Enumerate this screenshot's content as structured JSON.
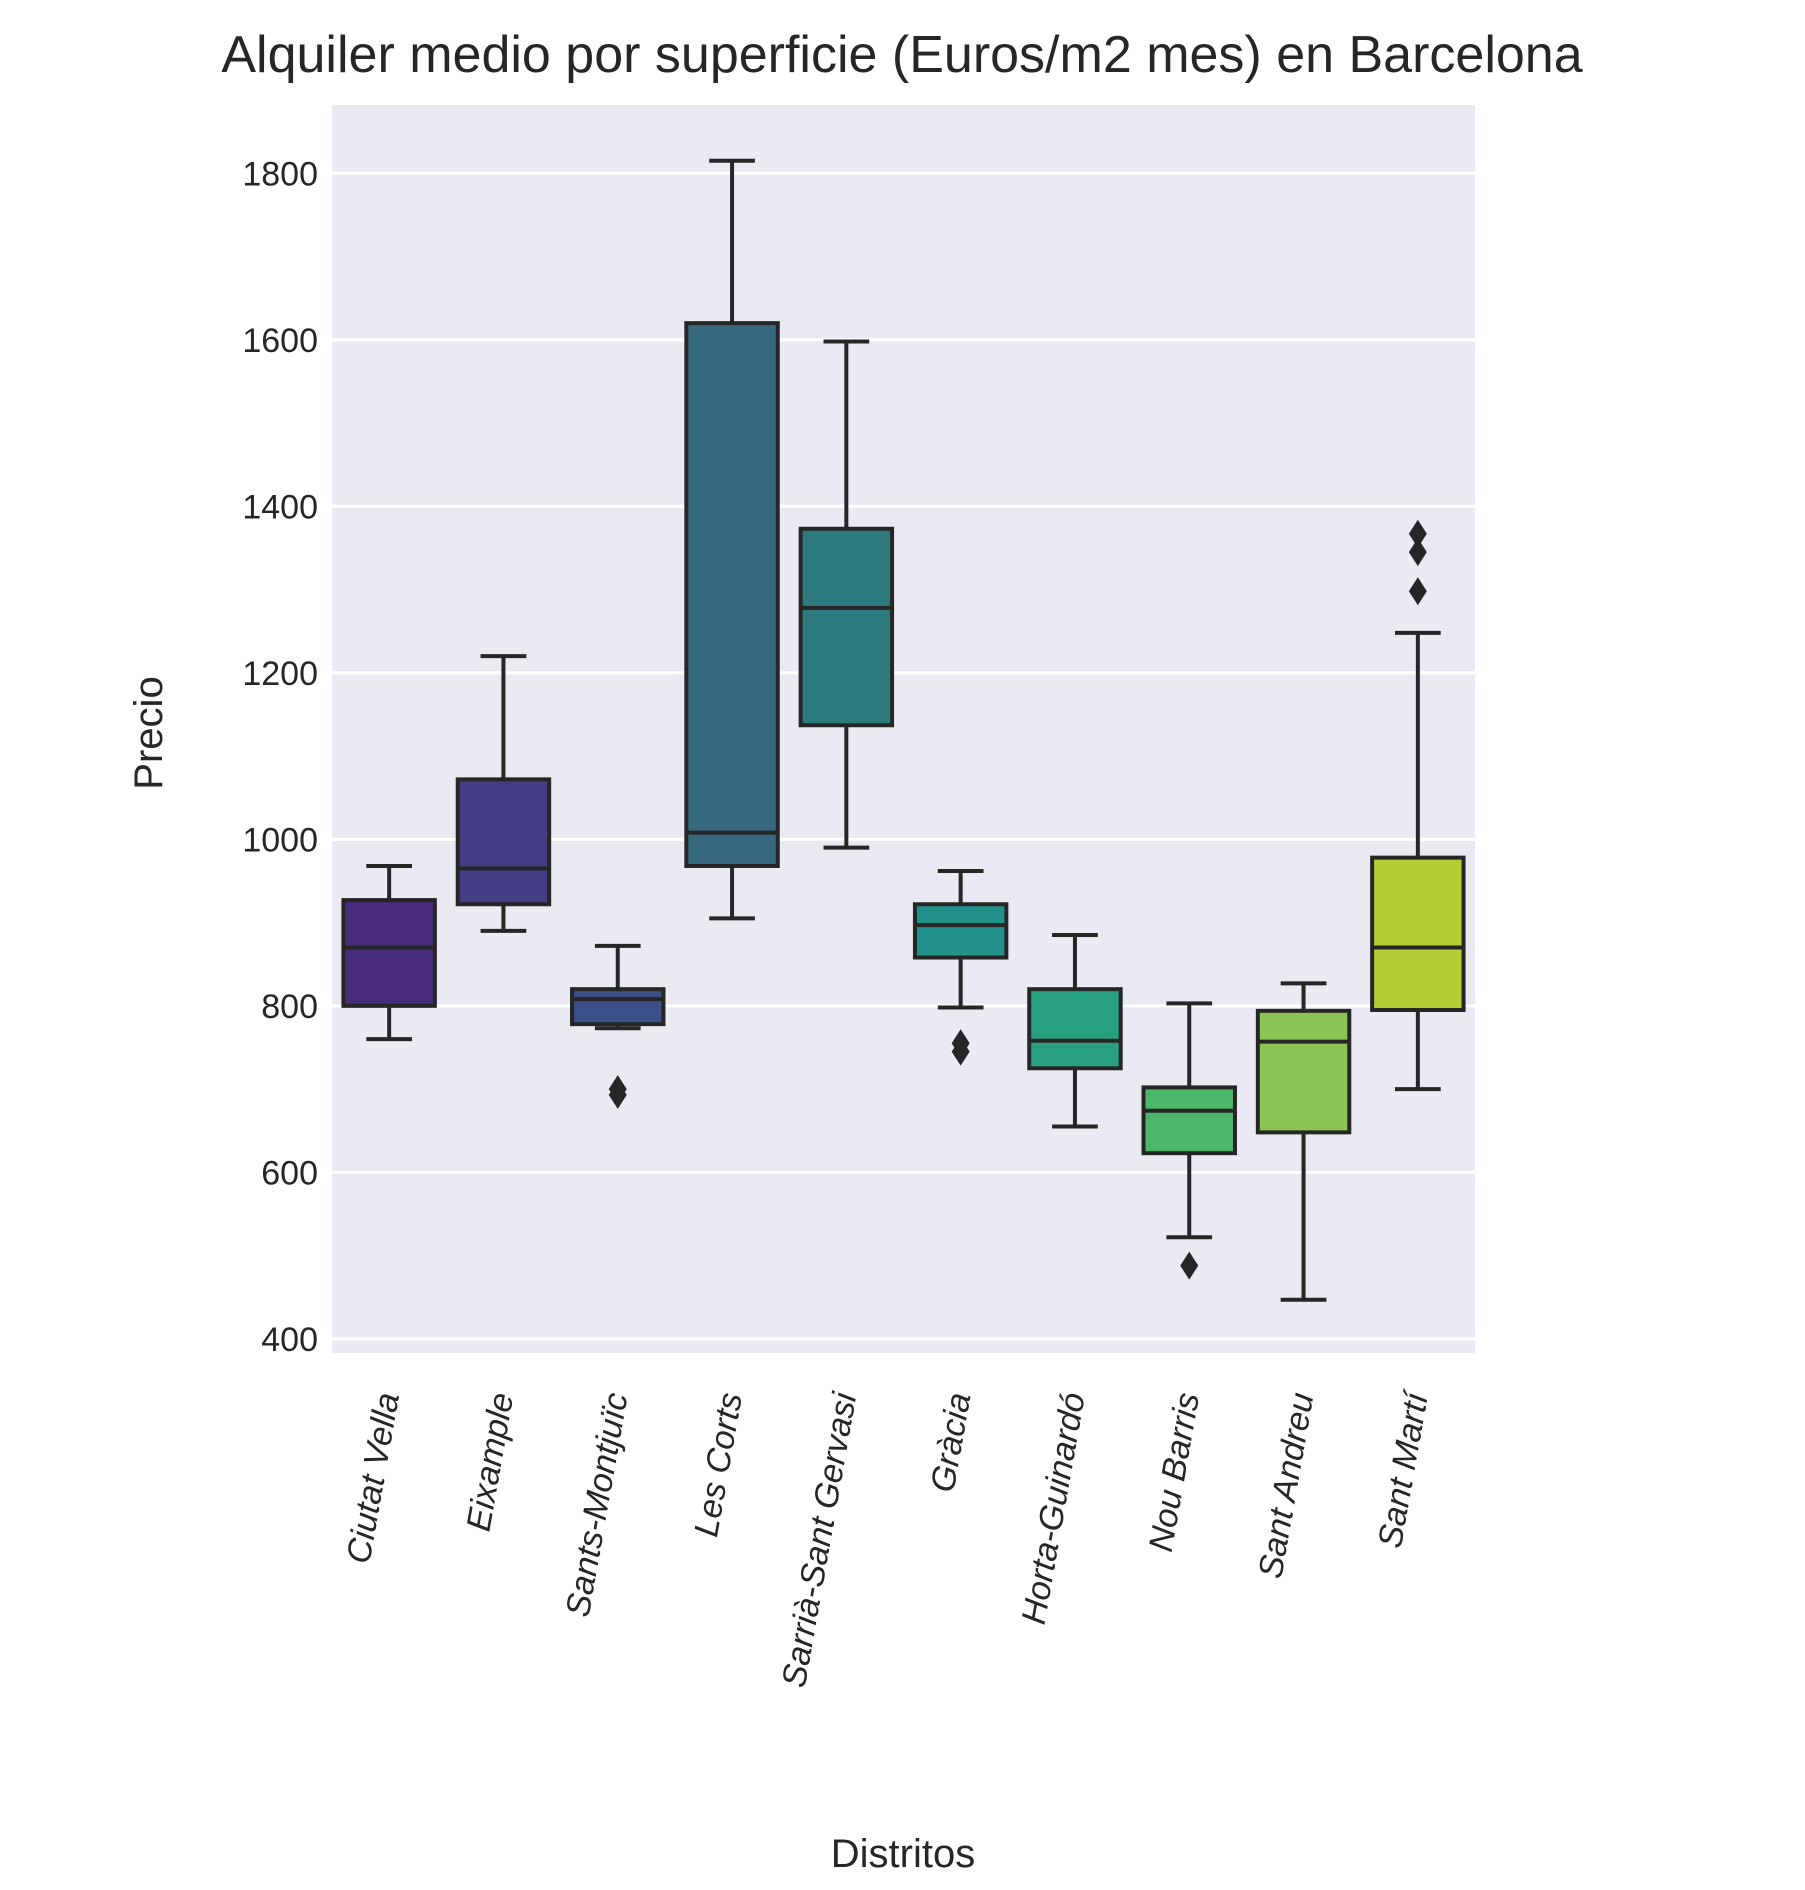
{
  "chart_data": {
    "type": "box",
    "title": "Alquiler medio por superficie (Euros/m2 mes) en Barcelona",
    "xlabel": "Distritos",
    "ylabel": "Precio",
    "ylim": [
      383,
      1882
    ],
    "yticks": [
      400,
      600,
      800,
      1000,
      1200,
      1400,
      1600,
      1800
    ],
    "grid": true,
    "background": "#eaeaf2",
    "series": [
      {
        "category": "Ciutat Vella",
        "color": "#472c7a",
        "whisker_low": 760,
        "q1": 800,
        "median": 870,
        "q3": 927,
        "whisker_high": 968,
        "outliers": []
      },
      {
        "category": "Eixample",
        "color": "#443e85",
        "whisker_low": 890,
        "q1": 922,
        "median": 965,
        "q3": 1072,
        "whisker_high": 1220,
        "outliers": []
      },
      {
        "category": "Sants-Montjuïc",
        "color": "#3b5089",
        "whisker_low": 773,
        "q1": 778,
        "median": 808,
        "q3": 820,
        "whisker_high": 872,
        "outliers": [
          693,
          700
        ]
      },
      {
        "category": "Les Corts",
        "color": "#36697f",
        "whisker_low": 905,
        "q1": 968,
        "median": 1008,
        "q3": 1620,
        "whisker_high": 1815,
        "outliers": []
      },
      {
        "category": "Sarrià-Sant Gervasi",
        "color": "#2d7a7e",
        "whisker_low": 990,
        "q1": 1137,
        "median": 1278,
        "q3": 1373,
        "whisker_high": 1598,
        "outliers": []
      },
      {
        "category": "Gràcia",
        "color": "#21918c",
        "whisker_low": 798,
        "q1": 858,
        "median": 897,
        "q3": 922,
        "whisker_high": 962,
        "outliers": [
          745,
          755
        ]
      },
      {
        "category": "Horta-Guinardó",
        "color": "#26a07f",
        "whisker_low": 655,
        "q1": 725,
        "median": 758,
        "q3": 820,
        "whisker_high": 885,
        "outliers": []
      },
      {
        "category": "Nou Barris",
        "color": "#4cb76b",
        "whisker_low": 522,
        "q1": 623,
        "median": 674,
        "q3": 702,
        "whisker_high": 803,
        "outliers": [
          488
        ]
      },
      {
        "category": "Sant Andreu",
        "color": "#8ac555",
        "whisker_low": 447,
        "q1": 648,
        "median": 757,
        "q3": 794,
        "whisker_high": 827,
        "outliers": []
      },
      {
        "category": "Sant Martí",
        "color": "#b4cd35",
        "whisker_low": 700,
        "q1": 795,
        "median": 870,
        "q3": 978,
        "whisker_high": 1248,
        "outliers": [
          1298,
          1345,
          1367
        ]
      }
    ]
  }
}
